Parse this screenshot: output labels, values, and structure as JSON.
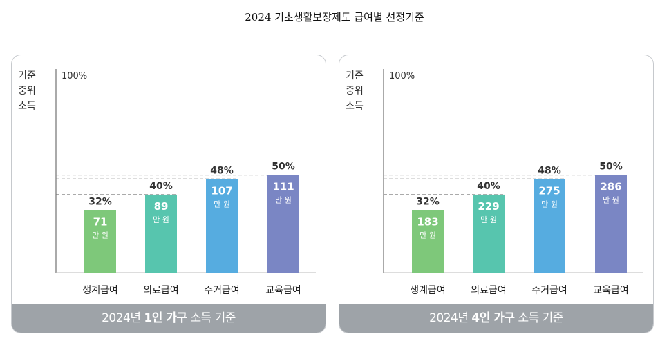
{
  "title": "2024 기초생활보장제도 급여별 선정기준",
  "chart_data": [
    {
      "type": "bar",
      "ylabel_lines": [
        "기준",
        "중위",
        "소득"
      ],
      "ymax_label": "100%",
      "categories": [
        "생계급여",
        "의료급여",
        "주거급여",
        "교육급여"
      ],
      "percent_labels": [
        "32%",
        "40%",
        "48%",
        "50%"
      ],
      "percent_values": [
        32,
        40,
        48,
        50
      ],
      "value_labels": [
        "71",
        "89",
        "107",
        "111"
      ],
      "values": [
        71,
        89,
        107,
        111
      ],
      "unit": "만 원",
      "colors": [
        "#7ec87a",
        "#57c5ae",
        "#56ace0",
        "#7a86c4"
      ],
      "ylim": [
        0,
        100
      ],
      "footer": {
        "pre": "2024년 ",
        "bold": "1인 가구",
        "post": " 소득 기준"
      }
    },
    {
      "type": "bar",
      "ylabel_lines": [
        "기준",
        "중위",
        "소득"
      ],
      "ymax_label": "100%",
      "categories": [
        "생계급여",
        "의료급여",
        "주거급여",
        "교육급여"
      ],
      "percent_labels": [
        "32%",
        "40%",
        "48%",
        "50%"
      ],
      "percent_values": [
        32,
        40,
        48,
        50
      ],
      "value_labels": [
        "183",
        "229",
        "275",
        "286"
      ],
      "values": [
        183,
        229,
        275,
        286
      ],
      "unit": "만 원",
      "colors": [
        "#7ec87a",
        "#57c5ae",
        "#56ace0",
        "#7a86c4"
      ],
      "ylim": [
        0,
        100
      ],
      "footer": {
        "pre": "2024년 ",
        "bold": "4인 가구",
        "post": " 소득 기준"
      }
    }
  ]
}
